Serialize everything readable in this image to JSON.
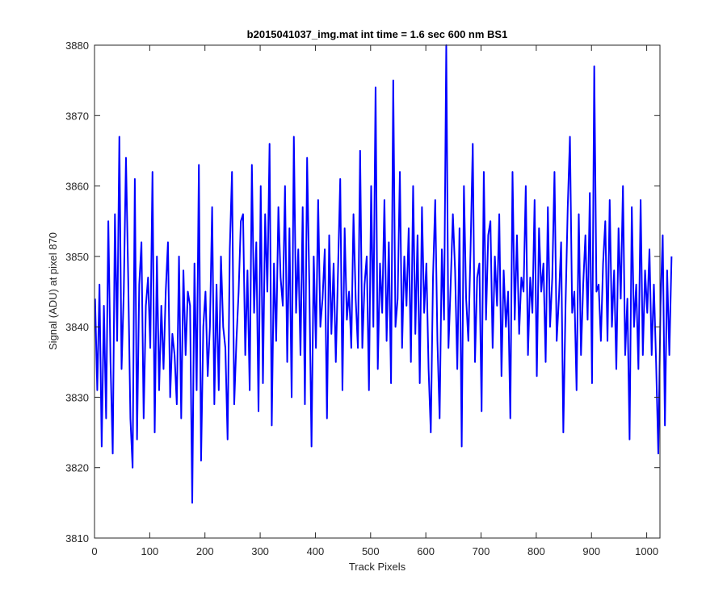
{
  "chart_data": {
    "type": "line",
    "title": "b2015041037_img.mat int time = 1.6 sec  600 nm BS1",
    "xlabel": "Track Pixels",
    "ylabel": "Signal (ADU) at pixel 870",
    "xlim": [
      0,
      1024
    ],
    "ylim": [
      3810,
      3880
    ],
    "xticks": [
      0,
      100,
      200,
      300,
      400,
      500,
      600,
      700,
      800,
      900,
      1000
    ],
    "yticks": [
      3810,
      3820,
      3830,
      3840,
      3850,
      3860,
      3870,
      3880
    ],
    "grid": false,
    "line_color": "#0000ff",
    "series": [
      {
        "x_start": 1,
        "x_step": 4,
        "values": [
          3844,
          3831,
          3846,
          3823,
          3843,
          3827,
          3855,
          3835,
          3822,
          3856,
          3838,
          3867,
          3834,
          3845,
          3864,
          3847,
          3827,
          3820,
          3861,
          3824,
          3846,
          3852,
          3827,
          3843,
          3847,
          3837,
          3862,
          3825,
          3850,
          3831,
          3843,
          3834,
          3845,
          3852,
          3830,
          3839,
          3836,
          3829,
          3850,
          3827,
          3848,
          3836,
          3845,
          3843,
          3815,
          3849,
          3831,
          3863,
          3821,
          3840,
          3845,
          3833,
          3840,
          3857,
          3829,
          3846,
          3831,
          3850,
          3840,
          3837,
          3824,
          3851,
          3862,
          3829,
          3838,
          3845,
          3855,
          3856,
          3836,
          3848,
          3831,
          3863,
          3842,
          3852,
          3828,
          3860,
          3832,
          3856,
          3845,
          3866,
          3826,
          3849,
          3838,
          3857,
          3847,
          3843,
          3860,
          3835,
          3854,
          3830,
          3867,
          3842,
          3851,
          3836,
          3857,
          3829,
          3864,
          3846,
          3823,
          3850,
          3837,
          3858,
          3840,
          3844,
          3851,
          3827,
          3853,
          3839,
          3849,
          3835,
          3848,
          3861,
          3831,
          3854,
          3841,
          3845,
          3837,
          3856,
          3844,
          3837,
          3865,
          3837,
          3846,
          3850,
          3831,
          3860,
          3840,
          3874,
          3834,
          3849,
          3842,
          3858,
          3838,
          3852,
          3832,
          3875,
          3840,
          3844,
          3862,
          3837,
          3850,
          3843,
          3854,
          3835,
          3860,
          3839,
          3853,
          3832,
          3857,
          3842,
          3849,
          3834,
          3825,
          3847,
          3858,
          3838,
          3827,
          3851,
          3841,
          3880,
          3837,
          3846,
          3856,
          3848,
          3834,
          3854,
          3823,
          3860,
          3844,
          3838,
          3851,
          3866,
          3835,
          3847,
          3849,
          3828,
          3862,
          3841,
          3853,
          3855,
          3837,
          3850,
          3843,
          3856,
          3833,
          3848,
          3840,
          3845,
          3827,
          3862,
          3841,
          3853,
          3839,
          3847,
          3845,
          3860,
          3836,
          3847,
          3842,
          3858,
          3833,
          3854,
          3845,
          3849,
          3835,
          3857,
          3840,
          3847,
          3862,
          3838,
          3844,
          3852,
          3825,
          3843,
          3857,
          3867,
          3842,
          3845,
          3831,
          3856,
          3836,
          3846,
          3853,
          3841,
          3859,
          3832,
          3877,
          3845,
          3846,
          3838,
          3849,
          3855,
          3838,
          3858,
          3840,
          3848,
          3834,
          3854,
          3844,
          3860,
          3836,
          3844,
          3824,
          3857,
          3840,
          3846,
          3834,
          3858,
          3836,
          3848,
          3842,
          3851,
          3836,
          3846,
          3835,
          3822,
          3843,
          3853,
          3826,
          3848,
          3836,
          3850
        ]
      }
    ]
  }
}
